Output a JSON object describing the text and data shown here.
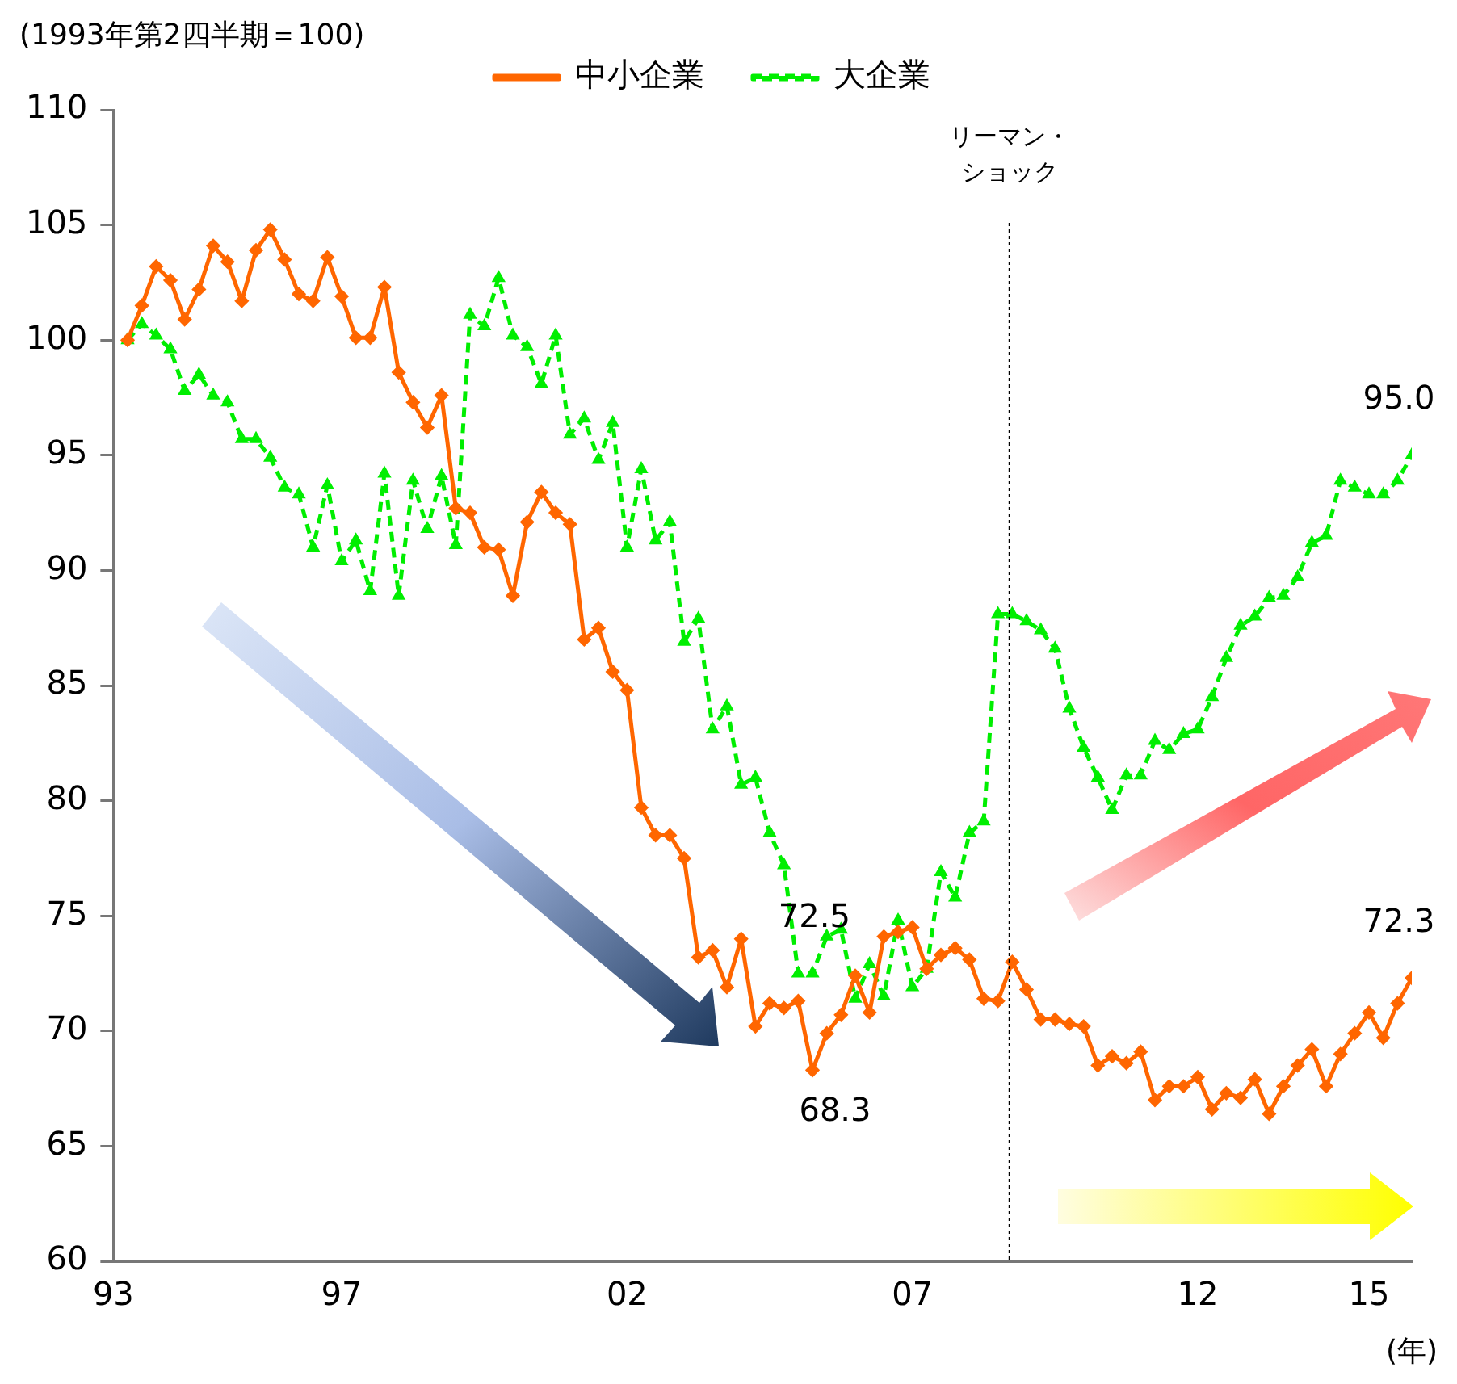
{
  "chart_data": {
    "type": "line",
    "ylabel": "(1993年第2四半期＝100)",
    "xlabel": "(年)",
    "x": [
      1993.25,
      1993.5,
      1993.75,
      1994,
      1994.25,
      1994.5,
      1994.75,
      1995,
      1995.25,
      1995.5,
      1995.75,
      1996,
      1996.25,
      1996.5,
      1996.75,
      1997,
      1997.25,
      1997.5,
      1997.75,
      1998,
      1998.25,
      1998.5,
      1998.75,
      1999,
      1999.25,
      1999.5,
      1999.75,
      2000,
      2000.25,
      2000.5,
      2000.75,
      2001,
      2001.25,
      2001.5,
      2001.75,
      2002,
      2002.25,
      2002.5,
      2002.75,
      2003,
      2003.25,
      2003.5,
      2003.75,
      2004,
      2004.25,
      2004.5,
      2004.75,
      2005,
      2005.25,
      2005.5,
      2005.75,
      2006,
      2006.25,
      2006.5,
      2006.75,
      2007,
      2007.25,
      2007.5,
      2007.75,
      2008,
      2008.25,
      2008.5,
      2008.75,
      2009,
      2009.25,
      2009.5,
      2009.75,
      2010,
      2010.25,
      2010.5,
      2010.75,
      2011,
      2011.25,
      2011.5,
      2011.75,
      2012,
      2012.25,
      2012.5,
      2012.75,
      2013,
      2013.25,
      2013.5,
      2013.75,
      2014,
      2014.25,
      2014.5,
      2014.75,
      2015,
      2015.25,
      2015.5,
      2015.75
    ],
    "series": [
      {
        "name": "中小企業",
        "color": "#ff6600",
        "marker": "diamond",
        "line_style": "solid",
        "values": [
          100.0,
          101.5,
          103.2,
          102.6,
          100.9,
          102.2,
          104.1,
          103.4,
          101.7,
          103.9,
          104.8,
          103.5,
          102.0,
          101.7,
          103.6,
          101.9,
          100.1,
          100.1,
          102.3,
          98.6,
          97.3,
          96.2,
          97.6,
          92.7,
          92.5,
          91.0,
          90.9,
          88.9,
          92.1,
          93.4,
          92.5,
          92.0,
          87.0,
          87.5,
          85.6,
          84.8,
          79.7,
          78.5,
          78.5,
          77.5,
          73.2,
          73.5,
          71.9,
          74.0,
          70.2,
          71.2,
          71.0,
          71.3,
          68.3,
          69.9,
          70.7,
          72.4,
          70.8,
          74.1,
          74.3,
          74.5,
          72.7,
          73.3,
          73.6,
          73.1,
          71.4,
          71.3,
          73.0,
          71.8,
          70.5,
          70.5,
          70.3,
          70.2,
          68.5,
          68.9,
          68.6,
          69.1,
          67.0,
          67.6,
          67.6,
          68.0,
          66.6,
          67.3,
          67.1,
          67.9,
          66.4,
          67.6,
          68.5,
          69.2,
          67.6,
          69.0,
          69.9,
          70.8,
          69.7,
          71.2,
          72.3
        ]
      },
      {
        "name": "大企業",
        "color": "#00ee00",
        "marker": "triangle",
        "line_style": "dashed",
        "values": [
          100.0,
          100.7,
          100.2,
          99.6,
          97.8,
          98.5,
          97.6,
          97.3,
          95.7,
          95.7,
          94.9,
          93.6,
          93.3,
          91.0,
          93.7,
          90.4,
          91.3,
          89.1,
          94.2,
          88.9,
          93.9,
          91.8,
          94.1,
          91.1,
          101.1,
          100.6,
          102.7,
          100.2,
          99.7,
          98.1,
          100.2,
          95.9,
          96.6,
          94.8,
          96.4,
          91.0,
          94.4,
          91.3,
          92.1,
          86.9,
          87.9,
          83.1,
          84.1,
          80.7,
          81.0,
          78.6,
          77.2,
          72.5,
          72.5,
          74.1,
          74.4,
          71.4,
          72.9,
          71.5,
          74.8,
          71.9,
          72.7,
          76.9,
          75.8,
          78.6,
          79.1,
          88.1,
          88.1,
          87.8,
          87.4,
          86.6,
          84.0,
          82.3,
          81.0,
          79.6,
          81.1,
          81.1,
          82.6,
          82.2,
          82.9,
          83.1,
          84.5,
          86.2,
          87.6,
          88.0,
          88.8,
          88.9,
          89.7,
          91.2,
          91.5,
          93.9,
          93.6,
          93.3,
          93.3,
          93.9,
          95.0
        ]
      }
    ],
    "xlim": [
      1993,
      2015.75
    ],
    "xticks": [
      {
        "value": 1993,
        "label": "93"
      },
      {
        "value": 1997,
        "label": "97"
      },
      {
        "value": 2002,
        "label": "02"
      },
      {
        "value": 2007,
        "label": "07"
      },
      {
        "value": 2012,
        "label": "12"
      },
      {
        "value": 2015,
        "label": "15"
      }
    ],
    "ylim": [
      60,
      110
    ],
    "yticks": [
      60,
      65,
      70,
      75,
      80,
      85,
      90,
      95,
      100,
      105,
      110
    ],
    "grid": false,
    "legend": "top",
    "ref_lines": [
      {
        "axis": "x",
        "value": 2008.7,
        "label": "リーマン・ショック",
        "color": "#000000",
        "line_style": "dotted"
      }
    ],
    "annotations": [
      {
        "text": "72.5",
        "x": 2005,
        "y": 72.5
      },
      {
        "text": "68.3",
        "x": 2005.25,
        "y": 68.3
      },
      {
        "text": "95.0",
        "x": 2015.75,
        "y": 95.0
      },
      {
        "text": "72.3",
        "x": 2015.75,
        "y": 72.3
      }
    ]
  }
}
